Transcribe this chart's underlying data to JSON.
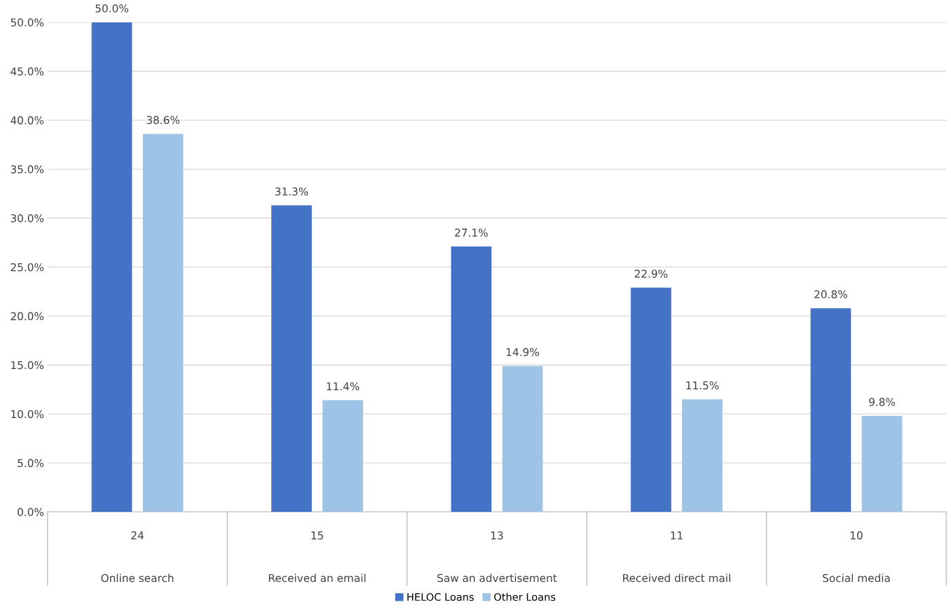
{
  "chart_data": {
    "type": "bar",
    "categories": [
      "24\nOnline search",
      "15\nReceived an email",
      "13\nSaw an advertisement",
      "11\nReceived direct mail",
      "10\nSocial media"
    ],
    "series": [
      {
        "name": "HELOC Loans",
        "color": "#4472c4",
        "values": [
          50.0,
          31.3,
          27.1,
          22.9,
          20.8
        ],
        "value_labels": [
          "50.0%",
          "31.3%",
          "27.1%",
          "22.9%",
          "20.8%"
        ]
      },
      {
        "name": "Other Loans",
        "color": "#9dc3e6",
        "values": [
          38.6,
          11.4,
          14.9,
          11.5,
          9.8
        ],
        "value_labels": [
          "38.6%",
          "11.4%",
          "14.9%",
          "11.5%",
          "9.8%"
        ]
      }
    ],
    "ylim": [
      0,
      50
    ],
    "yticks": [
      {
        "value": 0,
        "label": "0.0%"
      },
      {
        "value": 5,
        "label": "5.0%"
      },
      {
        "value": 10,
        "label": "10.0%"
      },
      {
        "value": 15,
        "label": "15.0%"
      },
      {
        "value": 20,
        "label": "20.0%"
      },
      {
        "value": 25,
        "label": "25.0%"
      },
      {
        "value": 30,
        "label": "30.0%"
      },
      {
        "value": 35,
        "label": "35.0%"
      },
      {
        "value": 40,
        "label": "40.0%"
      },
      {
        "value": 45,
        "label": "45.0%"
      },
      {
        "value": 50,
        "label": "50.0%"
      }
    ],
    "grid": "y",
    "legend": "bottom"
  }
}
